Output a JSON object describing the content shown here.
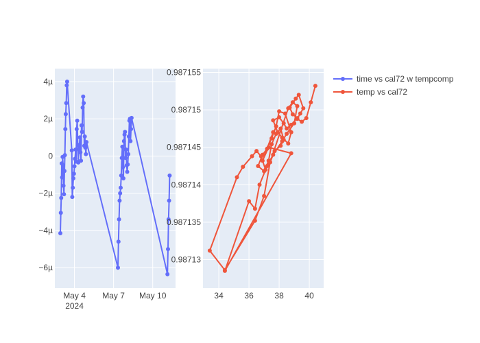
{
  "colors": {
    "plot_bg": "#E5ECF6",
    "grid": "#ffffff",
    "series1": "#636EFA",
    "series2": "#EF553B"
  },
  "legend": {
    "placement": "top-right",
    "entries": [
      "time vs cal72 w tempcomp",
      "temp vs cal72"
    ]
  },
  "chart_data": [
    {
      "type": "line",
      "mode": "lines+markers",
      "x_type": "date",
      "x_range": [
        "2024-05-02T12:00",
        "2024-05-11T18:00"
      ],
      "y_range": [
        -7.1e-06,
        4.7e-06
      ],
      "x_ticks": [
        {
          "value": "2024-05-04T00:00",
          "label": "May 4",
          "sublabel": "2024"
        },
        {
          "value": "2024-05-07T00:00",
          "label": "May 7"
        },
        {
          "value": "2024-05-10T00:00",
          "label": "May 10"
        }
      ],
      "y_ticks": [
        {
          "value": 4e-06,
          "label": "4µ"
        },
        {
          "value": 2e-06,
          "label": "2µ"
        },
        {
          "value": 0,
          "label": "0"
        },
        {
          "value": -2e-06,
          "label": "−2µ"
        },
        {
          "value": -4e-06,
          "label": "−4µ"
        },
        {
          "value": -6e-06,
          "label": "−6µ"
        }
      ],
      "series": [
        {
          "name": "time vs cal72 w tempcomp",
          "points": [
            [
              "2024-05-02T22:06",
              -4.15e-06
            ],
            [
              "2024-05-02T22:56",
              -3.05e-06
            ],
            [
              "2024-05-02T23:46",
              -2.25e-06
            ],
            [
              "2024-05-03T00:36",
              -4e-07
            ],
            [
              "2024-05-03T01:26",
              -1.15e-06
            ],
            [
              "2024-05-03T02:16",
              -5e-08
            ],
            [
              "2024-05-03T03:06",
              -5e-07
            ],
            [
              "2024-05-03T03:56",
              -1.6e-06
            ],
            [
              "2024-05-03T04:46",
              -2.05e-06
            ],
            [
              "2024-05-03T05:36",
              -8e-07
            ],
            [
              "2024-05-03T06:26",
              5e-08
            ],
            [
              "2024-05-03T07:16",
              1.45e-06
            ],
            [
              "2024-05-03T08:06",
              2.25e-06
            ],
            [
              "2024-05-03T08:56",
              2.85e-06
            ],
            [
              "2024-05-03T09:46",
              3.8e-06
            ],
            [
              "2024-05-03T10:36",
              4e-06
            ],
            [
              "2024-05-03T19:06",
              3e-07
            ],
            [
              "2024-05-03T20:06",
              -2.2e-06
            ],
            [
              "2024-05-03T21:06",
              -1.7e-06
            ],
            [
              "2024-05-03T22:06",
              -1.2e-06
            ],
            [
              "2024-05-03T23:06",
              -9.5e-07
            ],
            [
              "2024-05-04T00:06",
              -5.5e-07
            ],
            [
              "2024-05-04T01:06",
              -1.5e-07
            ],
            [
              "2024-05-04T02:06",
              3.5e-07
            ],
            [
              "2024-05-04T03:06",
              -3e-07
            ],
            [
              "2024-05-04T04:06",
              1.45e-06
            ],
            [
              "2024-05-04T05:06",
              1.9e-06
            ],
            [
              "2024-05-04T06:06",
              6e-07
            ],
            [
              "2024-05-04T07:06",
              -3.5e-07
            ],
            [
              "2024-05-04T08:06",
              4e-07
            ],
            [
              "2024-05-04T09:06",
              6e-07
            ],
            [
              "2024-05-04T10:06",
              1e-06
            ],
            [
              "2024-05-04T11:06",
              2e-07
            ],
            [
              "2024-05-04T12:06",
              -2.5e-07
            ],
            [
              "2024-05-04T13:06",
              1.65e-06
            ],
            [
              "2024-05-04T14:06",
              1.3e-06
            ],
            [
              "2024-05-04T15:06",
              2.6e-06
            ],
            [
              "2024-05-04T16:06",
              3.2e-06
            ],
            [
              "2024-05-04T17:06",
              2.85e-06
            ],
            [
              "2024-05-04T18:06",
              5.5e-07
            ],
            [
              "2024-05-04T19:06",
              1.05e-06
            ],
            [
              "2024-05-04T20:06",
              4.5e-07
            ],
            [
              "2024-05-04T21:06",
              1e-07
            ],
            [
              "2024-05-04T22:06",
              7.5e-07
            ],
            [
              "2024-05-07T08:06",
              -6e-06
            ],
            [
              "2024-05-07T09:06",
              -4.6e-06
            ],
            [
              "2024-05-07T10:06",
              -3.4e-06
            ],
            [
              "2024-05-07T11:06",
              -2.4e-06
            ],
            [
              "2024-05-07T12:06",
              -2e-06
            ],
            [
              "2024-05-07T13:06",
              -1.7e-06
            ],
            [
              "2024-05-07T14:06",
              -1.05e-06
            ],
            [
              "2024-05-07T15:06",
              -1e-07
            ],
            [
              "2024-05-07T16:06",
              5e-07
            ],
            [
              "2024-05-07T17:06",
              -6e-07
            ],
            [
              "2024-05-07T18:06",
              -1.2e-06
            ],
            [
              "2024-05-07T19:06",
              8e-07
            ],
            [
              "2024-05-07T20:06",
              1.15e-06
            ],
            [
              "2024-05-07T21:06",
              1.3e-06
            ],
            [
              "2024-05-07T22:06",
              -1e-07
            ],
            [
              "2024-05-07T23:06",
              3.5e-07
            ],
            [
              "2024-05-08T00:06",
              -5e-07
            ],
            [
              "2024-05-08T01:06",
              -8.5e-07
            ],
            [
              "2024-05-08T02:06",
              -4.5e-07
            ],
            [
              "2024-05-08T03:06",
              1e-07
            ],
            [
              "2024-05-08T04:06",
              1.05e-06
            ],
            [
              "2024-05-08T05:06",
              1.9e-06
            ],
            [
              "2024-05-08T06:06",
              2e-06
            ],
            [
              "2024-05-08T07:06",
              8e-07
            ],
            [
              "2024-05-08T08:06",
              1.45e-06
            ],
            [
              "2024-05-08T09:06",
              2.05e-06
            ],
            [
              "2024-05-11T03:06",
              -6.35e-06
            ],
            [
              "2024-05-11T04:06",
              -5e-06
            ],
            [
              "2024-05-11T05:06",
              -3.4e-06
            ],
            [
              "2024-05-11T06:06",
              -2.4e-06
            ],
            [
              "2024-05-11T07:06",
              -1.05e-06
            ]
          ]
        }
      ]
    },
    {
      "type": "line",
      "mode": "lines+markers",
      "x_range": [
        32.95,
        40.95
      ],
      "y_range": [
        0.9871262,
        0.9871555
      ],
      "x_ticks": [
        {
          "value": 34,
          "label": "34"
        },
        {
          "value": 36,
          "label": "36"
        },
        {
          "value": 38,
          "label": "38"
        },
        {
          "value": 40,
          "label": "40"
        }
      ],
      "y_ticks": [
        {
          "value": 0.987155,
          "label": "0.987155"
        },
        {
          "value": 0.98715,
          "label": "0.98715"
        },
        {
          "value": 0.987145,
          "label": "0.987145"
        },
        {
          "value": 0.98714,
          "label": "0.98714"
        },
        {
          "value": 0.987135,
          "label": "0.987135"
        },
        {
          "value": 0.98713,
          "label": "0.98713"
        }
      ],
      "series": [
        {
          "name": "temp vs cal72",
          "points": [
            [
              40.4,
              0.9871532
            ],
            [
              40.1,
              0.987151
            ],
            [
              39.8,
              0.9871489
            ],
            [
              39.5,
              0.9871484
            ],
            [
              39.2,
              0.9871488
            ],
            [
              39.4,
              0.9871495
            ],
            [
              39.6,
              0.9871502
            ],
            [
              39.3,
              0.987152
            ],
            [
              39.1,
              0.9871515
            ],
            [
              38.7,
              0.9871503
            ],
            [
              38.9,
              0.9871494
            ],
            [
              39.2,
              0.9871489
            ],
            [
              38.8,
              0.987148
            ],
            [
              38.5,
              0.9871475
            ],
            [
              38.3,
              0.9871482
            ],
            [
              38.0,
              0.987149
            ],
            [
              37.6,
              0.9871486
            ],
            [
              37.9,
              0.987147
            ],
            [
              38.2,
              0.9871463
            ],
            [
              38.6,
              0.9871455
            ],
            [
              38.8,
              0.987147
            ],
            [
              38.4,
              0.9871495
            ],
            [
              38.0,
              0.9871498
            ],
            [
              37.8,
              0.9871478
            ],
            [
              37.5,
              0.9871462
            ],
            [
              37.2,
              0.9871448
            ],
            [
              36.9,
              0.987144
            ],
            [
              36.6,
              0.9871425
            ],
            [
              37.0,
              0.9871418
            ],
            [
              37.3,
              0.9871432
            ],
            [
              37.5,
              0.9871454
            ],
            [
              37.8,
              0.9871468
            ],
            [
              38.1,
              0.9871475
            ],
            [
              38.3,
              0.987146
            ],
            [
              38.1,
              0.9871452
            ],
            [
              37.7,
              0.9871445
            ],
            [
              37.4,
              0.987143
            ],
            [
              37.1,
              0.987142
            ],
            [
              36.8,
              0.9871438
            ],
            [
              36.5,
              0.9871445
            ],
            [
              36.2,
              0.9871438
            ],
            [
              35.6,
              0.9871424
            ],
            [
              35.2,
              0.987141
            ],
            [
              33.4,
              0.9871312
            ],
            [
              34.4,
              0.9871286
            ],
            [
              36.4,
              0.9871352
            ],
            [
              37.0,
              0.9871385
            ],
            [
              37.4,
              0.987143
            ],
            [
              38.6,
              0.9871502
            ],
            [
              38.9,
              0.987151
            ],
            [
              39.2,
              0.9871505
            ],
            [
              39.0,
              0.9871482
            ],
            [
              38.5,
              0.9871468
            ],
            [
              38.2,
              0.9871458
            ],
            [
              37.6,
              0.987144
            ],
            [
              37.2,
              0.9871425
            ],
            [
              36.7,
              0.98714
            ],
            [
              36.4,
              0.9871368
            ],
            [
              36.0,
              0.9871378
            ],
            [
              34.4,
              0.9871285
            ],
            [
              38.8,
              0.9871442
            ],
            [
              37.3,
              0.987145
            ],
            [
              36.9,
              0.9871432
            ],
            [
              37.6,
              0.987147
            ]
          ]
        }
      ]
    }
  ]
}
